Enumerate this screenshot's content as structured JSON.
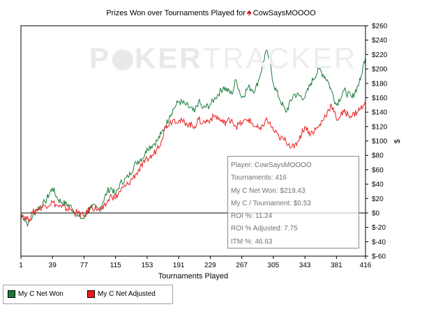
{
  "chart_data": {
    "type": "line",
    "title_prefix": "Prizes Won over Tournaments Played for",
    "player_name": "CowSaysMOOOO",
    "xlabel": "Tournaments Played",
    "ylabel": "$",
    "xlim": [
      1,
      416
    ],
    "ylim": [
      -60,
      260
    ],
    "x_ticks": [
      1,
      39,
      77,
      115,
      153,
      191,
      229,
      267,
      305,
      343,
      381,
      416
    ],
    "y_ticks": [
      -60,
      -40,
      -20,
      0,
      20,
      40,
      60,
      80,
      100,
      120,
      140,
      160,
      180,
      200,
      220,
      240,
      260
    ],
    "y_tick_labels": [
      "$-60",
      "$-40",
      "$-20",
      "$0",
      "$20",
      "$40",
      "$60",
      "$80",
      "$100",
      "$120",
      "$140",
      "$160",
      "$180",
      "$200",
      "$220",
      "$240",
      "$260"
    ],
    "grid": false,
    "zero_line": true,
    "legend_position": "bottom-left",
    "series": [
      {
        "name": "My C Net Won",
        "color": "#1a7a3a",
        "x": [
          1,
          5,
          10,
          15,
          20,
          30,
          39,
          45,
          50,
          60,
          70,
          77,
          85,
          95,
          100,
          105,
          110,
          115,
          120,
          130,
          140,
          150,
          153,
          160,
          165,
          170,
          175,
          180,
          185,
          191,
          200,
          210,
          215,
          220,
          229,
          235,
          245,
          255,
          260,
          267,
          275,
          283,
          290,
          296,
          300,
          305,
          312,
          320,
          330,
          343,
          350,
          360,
          370,
          375,
          381,
          390,
          400,
          410,
          416
        ],
        "y": [
          0,
          -8,
          -15,
          -5,
          5,
          15,
          35,
          20,
          15,
          10,
          -5,
          -8,
          10,
          5,
          15,
          30,
          35,
          25,
          40,
          50,
          70,
          80,
          90,
          95,
          100,
          110,
          120,
          135,
          145,
          155,
          150,
          140,
          155,
          145,
          150,
          160,
          175,
          165,
          185,
          160,
          175,
          170,
          195,
          225,
          215,
          180,
          160,
          140,
          165,
          160,
          180,
          200,
          185,
          170,
          150,
          170,
          160,
          185,
          219
        ]
      },
      {
        "name": "My C Net Adjusted",
        "color": "#ee1c1c",
        "x": [
          1,
          5,
          10,
          15,
          20,
          30,
          39,
          45,
          50,
          60,
          70,
          77,
          85,
          95,
          100,
          105,
          110,
          115,
          120,
          130,
          140,
          150,
          153,
          160,
          165,
          170,
          175,
          180,
          185,
          191,
          200,
          210,
          215,
          220,
          229,
          235,
          245,
          255,
          260,
          267,
          275,
          283,
          290,
          296,
          300,
          305,
          312,
          320,
          330,
          343,
          350,
          360,
          370,
          375,
          381,
          390,
          400,
          410,
          416
        ],
        "y": [
          0,
          -5,
          -10,
          0,
          5,
          10,
          15,
          10,
          8,
          5,
          0,
          -5,
          8,
          5,
          5,
          15,
          25,
          20,
          30,
          40,
          55,
          70,
          75,
          80,
          90,
          100,
          120,
          125,
          130,
          128,
          125,
          120,
          130,
          125,
          130,
          135,
          125,
          130,
          120,
          125,
          130,
          120,
          115,
          130,
          125,
          115,
          105,
          100,
          90,
          120,
          110,
          120,
          140,
          150,
          130,
          140,
          135,
          145,
          150
        ]
      }
    ]
  },
  "stats": [
    "Player: CowSaysMOOOO",
    "Tournaments: 416",
    "My C Net Won: $219.43",
    "My C / Tournament: $0.53",
    "ROI %: 11.24",
    "ROI % Adjusted: 7.75",
    "ITM %: 46.63"
  ],
  "legend": [
    {
      "label": "My C Net Won",
      "color": "#1a7a3a"
    },
    {
      "label": "My C Net Adjusted",
      "color": "#ee1c1c"
    }
  ],
  "watermark": {
    "part1": "P",
    "part2": "KER",
    "part3": "TRACKER"
  },
  "icons": {
    "player_icon": "spade-icon",
    "watermark_chip": "poker-chip-icon"
  }
}
